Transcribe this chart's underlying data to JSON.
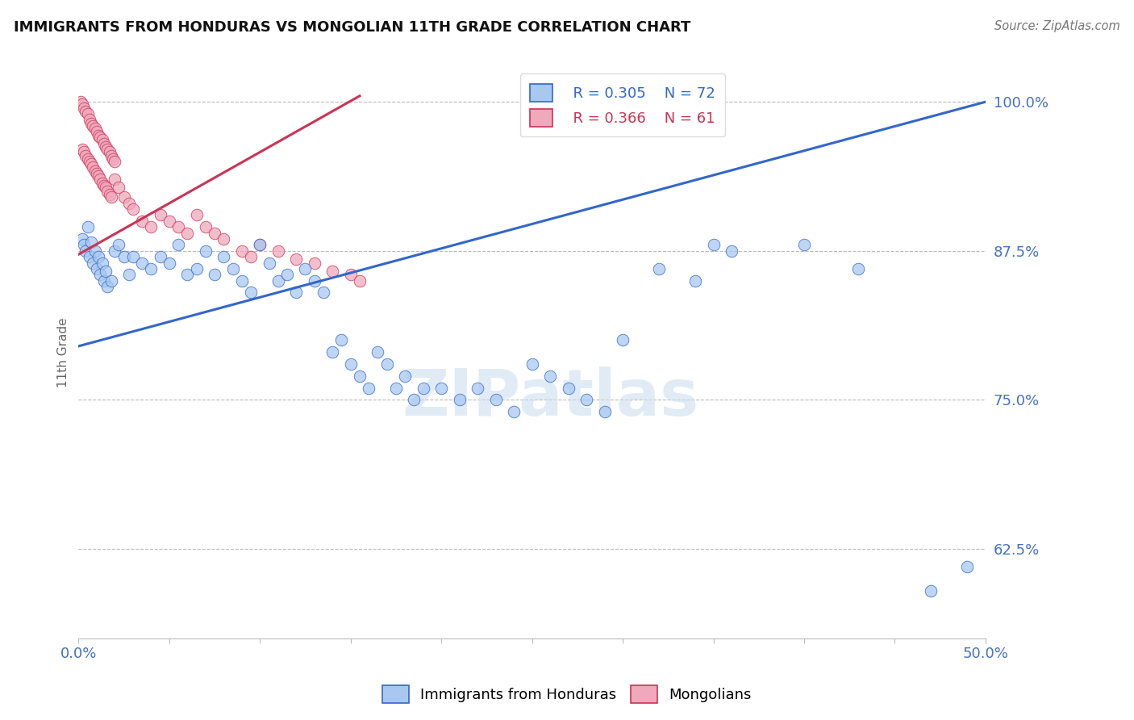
{
  "title": "IMMIGRANTS FROM HONDURAS VS MONGOLIAN 11TH GRADE CORRELATION CHART",
  "source": "Source: ZipAtlas.com",
  "ylabel": "11th Grade",
  "ylabel_ticks": [
    "100.0%",
    "87.5%",
    "75.0%",
    "62.5%"
  ],
  "ylabel_values": [
    1.0,
    0.875,
    0.75,
    0.625
  ],
  "xlim": [
    0.0,
    0.5
  ],
  "ylim": [
    0.55,
    1.03
  ],
  "legend_blue_r": "R = 0.305",
  "legend_blue_n": "N = 72",
  "legend_pink_r": "R = 0.366",
  "legend_pink_n": "N = 61",
  "blue_color": "#A8C8F0",
  "pink_color": "#F0A8BC",
  "line_blue_color": "#3366CC",
  "line_pink_color": "#CC3355",
  "watermark": "ZIPatlas",
  "blue_line_x": [
    0.0,
    0.5
  ],
  "blue_line_y": [
    0.795,
    1.0
  ],
  "pink_line_x": [
    0.0,
    0.155
  ],
  "pink_line_y": [
    0.872,
    1.005
  ],
  "blue_x": [
    0.002,
    0.003,
    0.004,
    0.005,
    0.006,
    0.007,
    0.008,
    0.009,
    0.01,
    0.011,
    0.012,
    0.013,
    0.014,
    0.015,
    0.016,
    0.018,
    0.02,
    0.022,
    0.025,
    0.028,
    0.03,
    0.035,
    0.04,
    0.045,
    0.05,
    0.055,
    0.06,
    0.065,
    0.07,
    0.075,
    0.08,
    0.085,
    0.09,
    0.095,
    0.1,
    0.105,
    0.11,
    0.115,
    0.12,
    0.125,
    0.13,
    0.135,
    0.14,
    0.145,
    0.15,
    0.155,
    0.16,
    0.165,
    0.17,
    0.175,
    0.18,
    0.185,
    0.19,
    0.2,
    0.21,
    0.22,
    0.23,
    0.24,
    0.25,
    0.26,
    0.27,
    0.28,
    0.29,
    0.3,
    0.32,
    0.34,
    0.35,
    0.36,
    0.4,
    0.43,
    0.47,
    0.49
  ],
  "blue_y": [
    0.885,
    0.88,
    0.875,
    0.895,
    0.87,
    0.882,
    0.865,
    0.875,
    0.86,
    0.87,
    0.855,
    0.865,
    0.85,
    0.858,
    0.845,
    0.85,
    0.875,
    0.88,
    0.87,
    0.855,
    0.87,
    0.865,
    0.86,
    0.87,
    0.865,
    0.88,
    0.855,
    0.86,
    0.875,
    0.855,
    0.87,
    0.86,
    0.85,
    0.84,
    0.88,
    0.865,
    0.85,
    0.855,
    0.84,
    0.86,
    0.85,
    0.84,
    0.79,
    0.8,
    0.78,
    0.77,
    0.76,
    0.79,
    0.78,
    0.76,
    0.77,
    0.75,
    0.76,
    0.76,
    0.75,
    0.76,
    0.75,
    0.74,
    0.78,
    0.77,
    0.76,
    0.75,
    0.74,
    0.8,
    0.86,
    0.85,
    0.88,
    0.875,
    0.88,
    0.86,
    0.59,
    0.61
  ],
  "pink_x": [
    0.001,
    0.002,
    0.003,
    0.004,
    0.005,
    0.006,
    0.007,
    0.008,
    0.009,
    0.01,
    0.011,
    0.012,
    0.013,
    0.014,
    0.015,
    0.016,
    0.017,
    0.018,
    0.019,
    0.02,
    0.002,
    0.003,
    0.004,
    0.005,
    0.006,
    0.007,
    0.008,
    0.009,
    0.01,
    0.011,
    0.012,
    0.013,
    0.014,
    0.015,
    0.016,
    0.017,
    0.018,
    0.02,
    0.022,
    0.025,
    0.028,
    0.03,
    0.035,
    0.04,
    0.045,
    0.05,
    0.055,
    0.06,
    0.065,
    0.07,
    0.075,
    0.08,
    0.09,
    0.095,
    0.1,
    0.11,
    0.12,
    0.13,
    0.14,
    0.15,
    0.155
  ],
  "pink_y": [
    1.0,
    0.998,
    0.995,
    0.992,
    0.99,
    0.985,
    0.982,
    0.98,
    0.978,
    0.975,
    0.972,
    0.97,
    0.968,
    0.965,
    0.962,
    0.96,
    0.958,
    0.955,
    0.952,
    0.95,
    0.96,
    0.958,
    0.955,
    0.952,
    0.95,
    0.948,
    0.945,
    0.942,
    0.94,
    0.938,
    0.935,
    0.932,
    0.93,
    0.928,
    0.925,
    0.922,
    0.92,
    0.935,
    0.928,
    0.92,
    0.915,
    0.91,
    0.9,
    0.895,
    0.905,
    0.9,
    0.895,
    0.89,
    0.905,
    0.895,
    0.89,
    0.885,
    0.875,
    0.87,
    0.88,
    0.875,
    0.868,
    0.865,
    0.858,
    0.855,
    0.85
  ]
}
